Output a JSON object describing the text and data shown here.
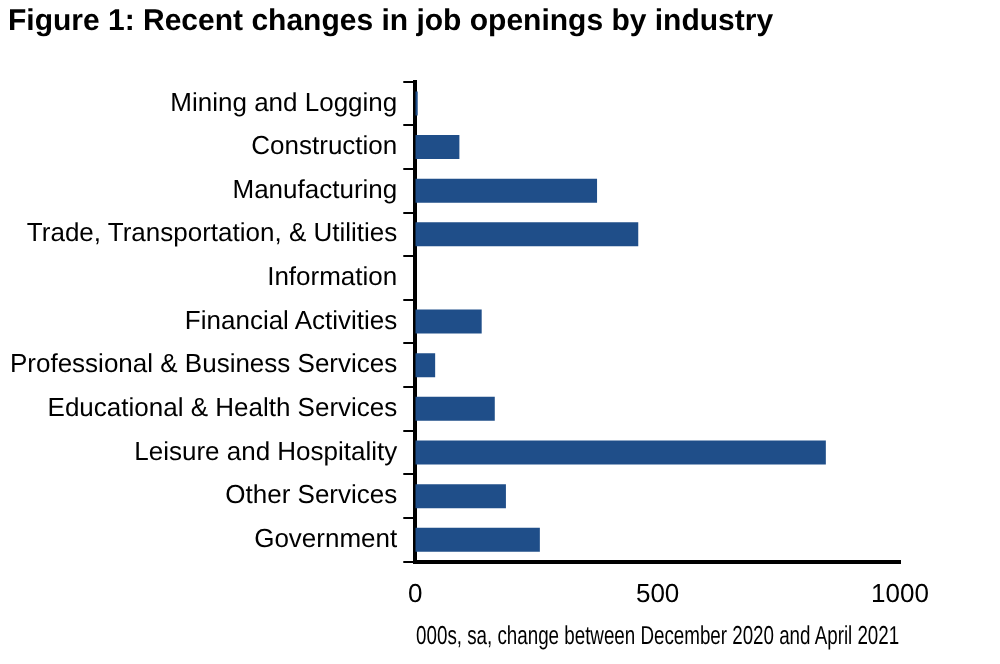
{
  "chart_data": {
    "type": "bar",
    "orientation": "horizontal",
    "title": "Figure 1: Recent changes in job openings by industry",
    "xlabel": "000s, sa, change between December 2020 and April 2021",
    "categories": [
      "Mining and Logging",
      "Construction",
      "Manufacturing",
      "Trade, Transportation, & Utilities",
      "Information",
      "Financial Activities",
      "Professional & Business Services",
      "Educational & Health Services",
      "Leisure and Hospitality",
      "Other Services",
      "Government"
    ],
    "values": [
      5,
      91,
      375,
      460,
      0,
      137,
      41,
      164,
      847,
      187,
      257
    ],
    "color": "#1f4e89",
    "xlim": [
      0,
      1000
    ],
    "xticks": [
      0,
      500,
      1000
    ],
    "grid": false,
    "legend": false
  }
}
